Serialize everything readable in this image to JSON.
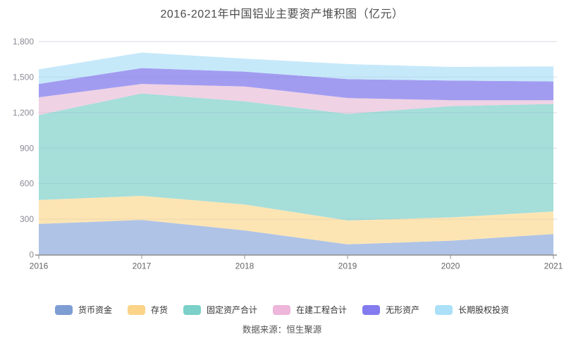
{
  "chart_data": {
    "type": "area",
    "stacked": true,
    "title": "2016-2021年中国铝业主要资产堆积图（亿元）",
    "unit": "亿元",
    "categories": [
      "2016",
      "2017",
      "2018",
      "2019",
      "2020",
      "2021"
    ],
    "series": [
      {
        "name": "货币资金",
        "legend_color": "#7e9dd3",
        "area_color": "#afc3e6",
        "values": [
          260,
          294,
          205,
          88,
          118,
          175
        ]
      },
      {
        "name": "存货",
        "legend_color": "#fbd489",
        "area_color": "#fde5b3",
        "values": [
          202,
          203,
          219,
          201,
          197,
          190
        ]
      },
      {
        "name": "固定资产合计",
        "legend_color": "#7bd0c9",
        "area_color": "#a6deda",
        "values": [
          718,
          865,
          871,
          901,
          940,
          908
        ]
      },
      {
        "name": "在建工程合计",
        "legend_color": "#edb6da",
        "area_color": "#efd2e4",
        "values": [
          149,
          80,
          126,
          133,
          50,
          32
        ]
      },
      {
        "name": "无形资产",
        "legend_color": "#837bee",
        "area_color": "#a29cf1",
        "values": [
          113,
          134,
          125,
          160,
          166,
          158
        ]
      },
      {
        "name": "长期股权投资",
        "legend_color": "#abe0f8",
        "area_color": "#c6e9fa",
        "values": [
          124,
          131,
          110,
          127,
          115,
          127
        ]
      }
    ],
    "ylim": [
      0,
      1800
    ],
    "ytick_interval": 300,
    "y_tick_labels": [
      "0",
      "300",
      "600",
      "900",
      "1,200",
      "1,500",
      "1,800"
    ],
    "x_tick_labels": [
      "2016",
      "2017",
      "2018",
      "2019",
      "2020",
      "2021"
    ],
    "grid": true,
    "legend_position": "bottom",
    "grid_color": "#e9e9f2",
    "axis_line_color": "#8f8f8f",
    "axis_label_color": "#8a8a96",
    "x_label_color": "#666666"
  },
  "source_text": "数据来源：恒生聚源"
}
